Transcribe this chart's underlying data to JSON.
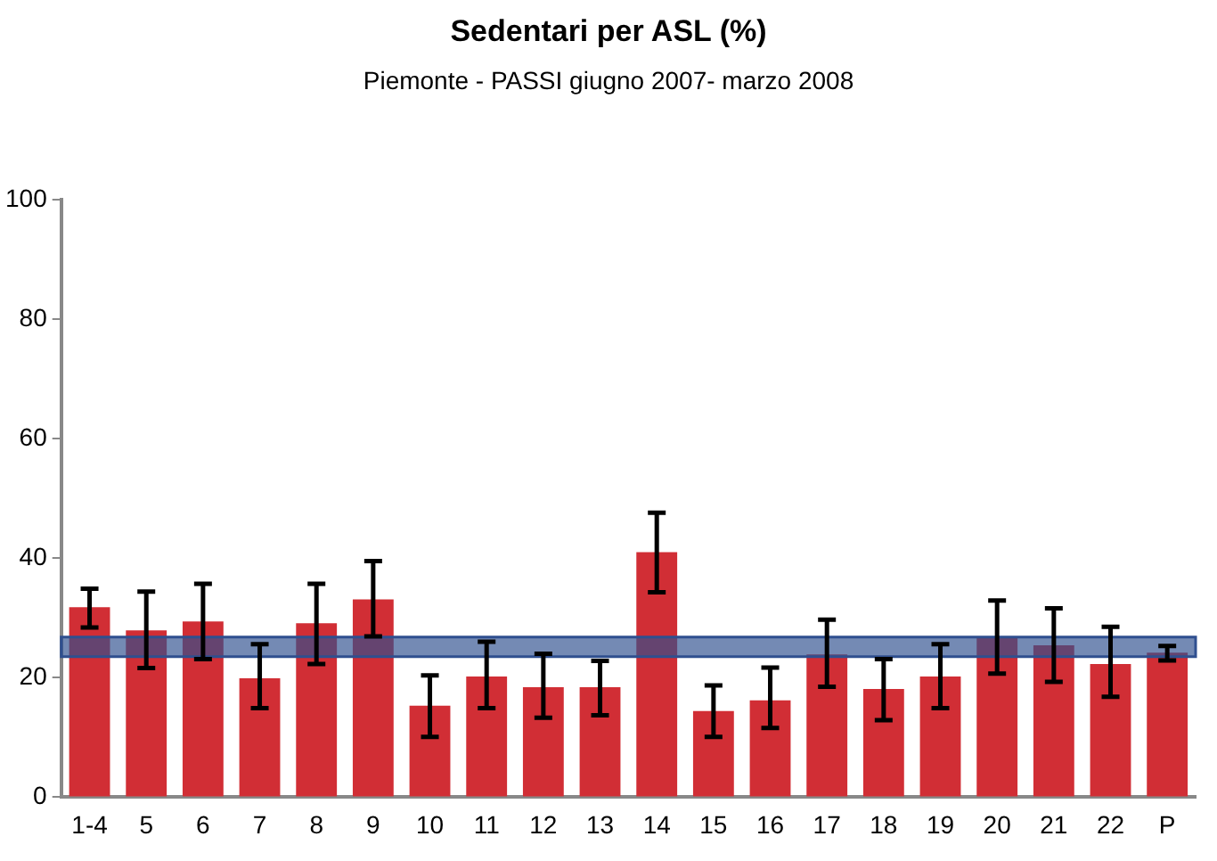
{
  "chart_data": {
    "type": "bar",
    "title": "Sedentari per ASL (%)",
    "subtitle": "Piemonte - PASSI giugno 2007- marzo 2008",
    "categories": [
      "1-4",
      "5",
      "6",
      "7",
      "8",
      "9",
      "10",
      "11",
      "12",
      "13",
      "14",
      "15",
      "16",
      "17",
      "18",
      "19",
      "20",
      "21",
      "22",
      "P"
    ],
    "values": [
      31.8,
      27.9,
      29.4,
      19.9,
      29.1,
      33.1,
      15.3,
      20.2,
      18.4,
      18.4,
      41.0,
      14.4,
      16.2,
      23.9,
      18.1,
      20.2,
      26.7,
      25.4,
      22.3,
      24.2
    ],
    "errors": [
      [
        28.4,
        34.9
      ],
      [
        21.6,
        34.4
      ],
      [
        23.1,
        35.7
      ],
      [
        14.9,
        25.6
      ],
      [
        22.3,
        35.7
      ],
      [
        26.9,
        39.5
      ],
      [
        10.1,
        20.4
      ],
      [
        14.9,
        26.0
      ],
      [
        13.3,
        24.0
      ],
      [
        13.7,
        22.8
      ],
      [
        34.3,
        47.6
      ],
      [
        10.1,
        18.7
      ],
      [
        11.6,
        21.7
      ],
      [
        18.5,
        29.7
      ],
      [
        12.9,
        23.1
      ],
      [
        14.9,
        25.6
      ],
      [
        20.7,
        32.9
      ],
      [
        19.3,
        31.6
      ],
      [
        16.8,
        28.5
      ],
      [
        22.9,
        25.3
      ]
    ],
    "color": "#d12e35",
    "ylim": [
      0,
      100
    ],
    "yticks": [
      0,
      20,
      40,
      60,
      80,
      100
    ],
    "grid": false,
    "legend": false,
    "bands": [
      {
        "axis": "y",
        "from": 23.5,
        "to": 26.8,
        "color": "#2f4f8f"
      }
    ]
  }
}
